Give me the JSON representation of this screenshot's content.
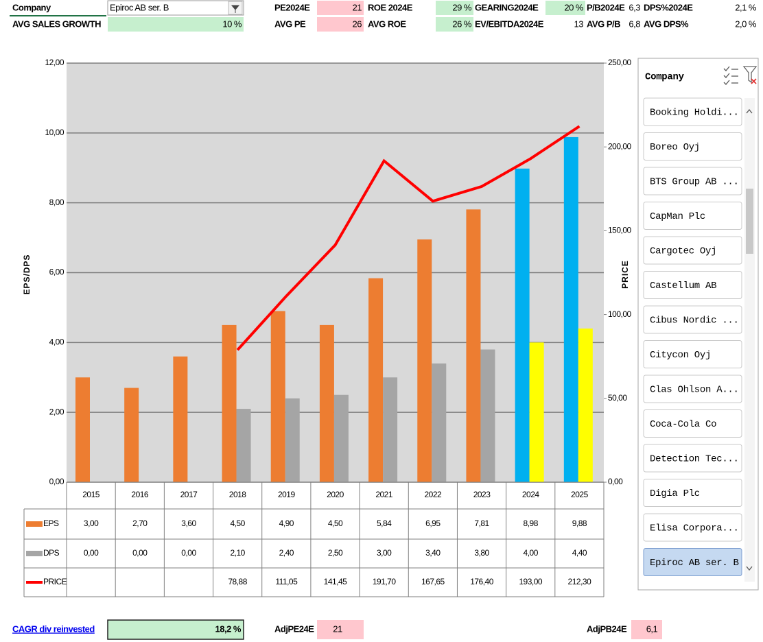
{
  "header_rows": [
    [
      {
        "label": "Company",
        "value": "Epiroc AB ser. B"
      },
      {
        "label": "PE2024E",
        "value": "21",
        "fill": "#ffc7ce"
      },
      {
        "label": "ROE 2024E",
        "value": "29 %",
        "fill": "#c6efce"
      },
      {
        "label": "GEARING2024E",
        "value": "20 %",
        "fill": "#c6efce"
      },
      {
        "label": "P/B2024E",
        "value": "6,3"
      },
      {
        "label": "DPS%2024E",
        "value": "2,1 %"
      }
    ],
    [
      {
        "label": "AVG SALES GROWTH",
        "value": "10 %",
        "fill": "#c6efce"
      },
      {
        "label": "AVG PE",
        "value": "26",
        "fill": "#ffc7ce"
      },
      {
        "label": "AVG ROE",
        "value": "26 %",
        "fill": "#c6efce"
      },
      {
        "label": "EV/EBITDA2024E",
        "value": "13"
      },
      {
        "label": "AVG P/B",
        "value": "6,8"
      },
      {
        "label": "AVG DPS%",
        "value": "2,0 %"
      }
    ]
  ],
  "chart_data": {
    "type": "combo",
    "y_label": "EPS/DPS",
    "y2_label": "PRICE",
    "categories": [
      "2015",
      "2016",
      "2017",
      "2018",
      "2019",
      "2020",
      "2021",
      "2022",
      "2023",
      "2024",
      "2025"
    ],
    "series": [
      {
        "name": "EPS",
        "type": "bar",
        "color": "#ed7d31",
        "colors": [
          "#ed7d31",
          "#ed7d31",
          "#ed7d31",
          "#ed7d31",
          "#ed7d31",
          "#ed7d31",
          "#ed7d31",
          "#ed7d31",
          "#ed7d31",
          "#00b0f0",
          "#00b0f0"
        ],
        "values": [
          3,
          2.7,
          3.6,
          4.5,
          4.9,
          4.5,
          5.84,
          6.95,
          7.81,
          8.98,
          9.88
        ],
        "value_labels": [
          "3,00",
          "2,70",
          "3,60",
          "4,50",
          "4,90",
          "4,50",
          "5,84",
          "6,95",
          "7,81",
          "8,98",
          "9,88"
        ]
      },
      {
        "name": "DPS",
        "type": "bar",
        "color": "#a5a5a5",
        "colors": [
          "#a5a5a5",
          "#a5a5a5",
          "#a5a5a5",
          "#a5a5a5",
          "#a5a5a5",
          "#a5a5a5",
          "#a5a5a5",
          "#a5a5a5",
          "#a5a5a5",
          "#ffff00",
          "#ffff00"
        ],
        "values": [
          0,
          0,
          0,
          2.1,
          2.4,
          2.5,
          3,
          3.4,
          3.8,
          4,
          4.4
        ],
        "value_labels": [
          "0,00",
          "0,00",
          "0,00",
          "2,10",
          "2,40",
          "2,50",
          "3,00",
          "3,40",
          "3,80",
          "4,00",
          "4,40"
        ]
      },
      {
        "name": "PRICE",
        "type": "line",
        "axis": "y2",
        "color": "#ff0000",
        "values": [
          null,
          null,
          null,
          78.88,
          111.05,
          141.45,
          191.7,
          167.65,
          176.4,
          193,
          212.3
        ],
        "value_labels": [
          null,
          null,
          null,
          "78,88",
          "111,05",
          "141,45",
          "191,70",
          "167,65",
          "176,40",
          "193,00",
          "212,30"
        ]
      }
    ],
    "ylim": [
      0,
      12
    ],
    "yticks": [
      {
        "value": 0,
        "label": "0,00"
      },
      {
        "value": 2,
        "label": "2,00"
      },
      {
        "value": 4,
        "label": "4,00"
      },
      {
        "value": 6,
        "label": "6,00"
      },
      {
        "value": 8,
        "label": "8,00"
      },
      {
        "value": 10,
        "label": "10,00"
      },
      {
        "value": 12,
        "label": "12,00"
      }
    ],
    "y2lim": [
      0,
      250
    ],
    "y2ticks": [
      {
        "value": 0,
        "label": "0,00"
      },
      {
        "value": 50,
        "label": "50,00"
      },
      {
        "value": 100,
        "label": "100,00"
      },
      {
        "value": 150,
        "label": "150,00"
      },
      {
        "value": 200,
        "label": "200,00"
      },
      {
        "value": 250,
        "label": "250,00"
      }
    ],
    "grid": true
  },
  "slicer": {
    "title": "Company",
    "items": [
      "Booking Holdi...",
      "Boreo Oyj",
      "BTS Group AB ...",
      "CapMan Plc",
      "Cargotec Oyj",
      "Castellum AB",
      "Cibus Nordic ...",
      "Citycon Oyj",
      "Clas Ohlson A...",
      "Coca-Cola Co",
      "Detection Tec...",
      "Digia Plc",
      "Elisa Corpora...",
      "Epiroc AB ser. B"
    ],
    "selected": 13
  },
  "footer": [
    {
      "label": "CAGR div reinvested",
      "value": "18,2 %",
      "fill": "#c6efce",
      "link": true
    },
    {
      "label": "AdjPE24E",
      "value": "21",
      "fill": "#ffc7ce"
    },
    {
      "label": "AdjPB24E",
      "value": "6,1",
      "fill": "#ffc7ce"
    }
  ]
}
